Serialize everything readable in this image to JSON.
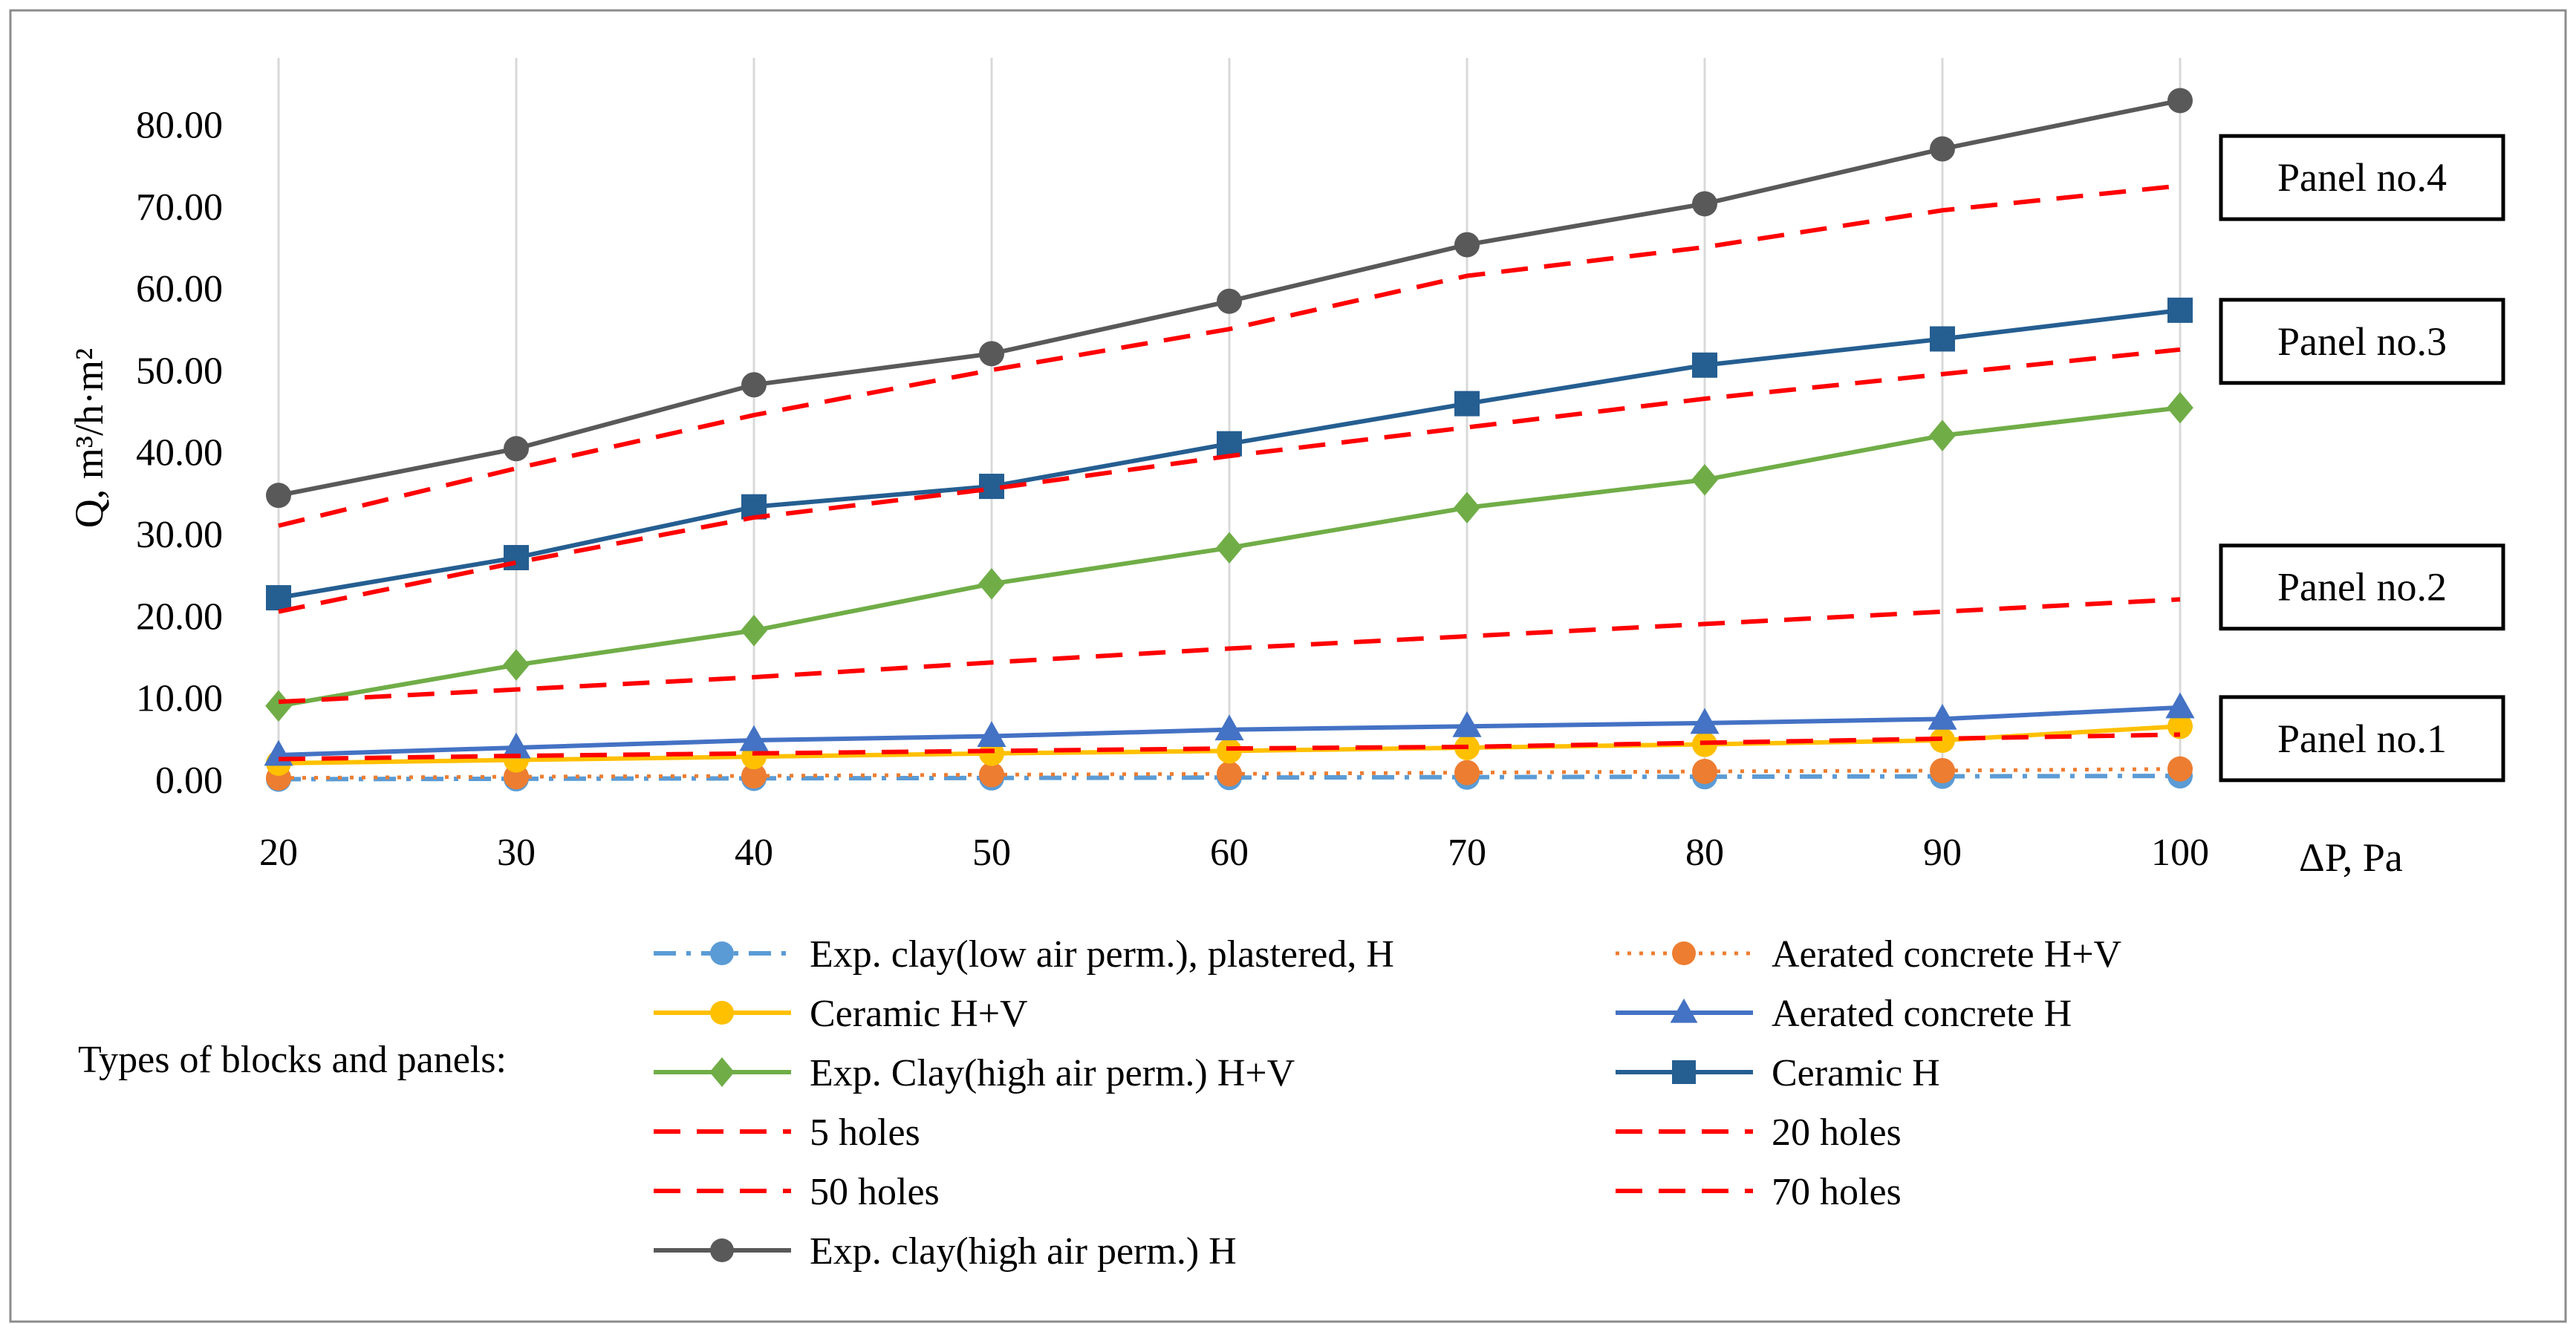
{
  "chart_data": {
    "type": "line",
    "x": [
      20,
      30,
      40,
      50,
      60,
      70,
      80,
      90,
      100
    ],
    "xlabel": "ΔP, Pa",
    "ylabel": "Q, m³/h·m²",
    "xlim": [
      20,
      100
    ],
    "ylim": [
      0,
      80
    ],
    "x_ticks": [
      "20",
      "30",
      "40",
      "50",
      "60",
      "70",
      "80",
      "90",
      "100"
    ],
    "y_ticks": [
      "0.00",
      "10.00",
      "20.00",
      "30.00",
      "40.00",
      "50.00",
      "60.00",
      "70.00",
      "80.00"
    ],
    "grid": "vertical",
    "legend_title": "Types of blocks and panels:",
    "legend_placement": "bottom",
    "series": [
      {
        "name": "Exp. clay(low air perm.), plastered, H",
        "color": "#5B9BD5",
        "dash": "dashdot",
        "marker": "circle",
        "values": [
          0.05,
          0.1,
          0.15,
          0.2,
          0.25,
          0.3,
          0.35,
          0.4,
          0.45
        ]
      },
      {
        "name": "Aerated concrete H+V",
        "color": "#ED7D31",
        "dash": "dot",
        "marker": "circle",
        "values": [
          0.2,
          0.35,
          0.45,
          0.6,
          0.7,
          0.85,
          1.0,
          1.1,
          1.3
        ]
      },
      {
        "name": "Ceramic H+V",
        "color": "#FFC000",
        "dash": "solid",
        "marker": "circle",
        "values": [
          2.0,
          2.4,
          2.8,
          3.2,
          3.5,
          3.9,
          4.3,
          4.8,
          6.5
        ]
      },
      {
        "name": "Aerated concrete H",
        "color": "#4472C4",
        "dash": "solid",
        "marker": "triangle",
        "values": [
          3.0,
          3.9,
          4.8,
          5.3,
          6.1,
          6.5,
          6.9,
          7.4,
          8.8
        ]
      },
      {
        "name": "Exp. Clay(high air perm.) H+V",
        "color": "#70AD47",
        "dash": "solid",
        "marker": "diamond",
        "values": [
          9.0,
          14.0,
          18.2,
          23.9,
          28.3,
          33.2,
          36.6,
          42.0,
          45.4
        ]
      },
      {
        "name": "Ceramic H",
        "color": "#255E91",
        "dash": "solid",
        "marker": "square",
        "values": [
          22.2,
          27.1,
          33.3,
          35.8,
          41.0,
          45.9,
          50.6,
          53.8,
          57.3
        ]
      },
      {
        "name": "5 holes",
        "color": "#FF0000",
        "dash": "dash",
        "marker": "none",
        "values": [
          2.5,
          2.9,
          3.2,
          3.5,
          3.8,
          4.0,
          4.5,
          5.0,
          5.5
        ]
      },
      {
        "name": "20 holes",
        "color": "#FF0000",
        "dash": "dash",
        "marker": "none",
        "values": [
          9.5,
          11.0,
          12.5,
          14.3,
          16.0,
          17.5,
          19.0,
          20.5,
          22.0
        ]
      },
      {
        "name": "50 holes",
        "color": "#FF0000",
        "dash": "dash",
        "marker": "none",
        "values": [
          20.5,
          26.5,
          32.0,
          35.5,
          39.5,
          43.0,
          46.5,
          49.5,
          52.5
        ]
      },
      {
        "name": "70 holes",
        "color": "#FF0000",
        "dash": "dash",
        "marker": "none",
        "values": [
          31.0,
          38.0,
          44.5,
          50.0,
          55.0,
          61.5,
          65.0,
          69.5,
          72.5
        ]
      },
      {
        "name": "Exp. clay(high air perm.) H",
        "color": "#595959",
        "dash": "solid",
        "marker": "circle",
        "values": [
          34.7,
          40.4,
          48.2,
          52.0,
          58.4,
          65.3,
          70.3,
          77.0,
          82.9
        ]
      }
    ],
    "annotations": [
      {
        "text": "Panel no.4",
        "y": 73.5
      },
      {
        "text": "Panel no.3",
        "y": 53.5
      },
      {
        "text": "Panel no.2",
        "y": 23.5
      },
      {
        "text": "Panel no.1",
        "y": 5.0
      }
    ]
  }
}
